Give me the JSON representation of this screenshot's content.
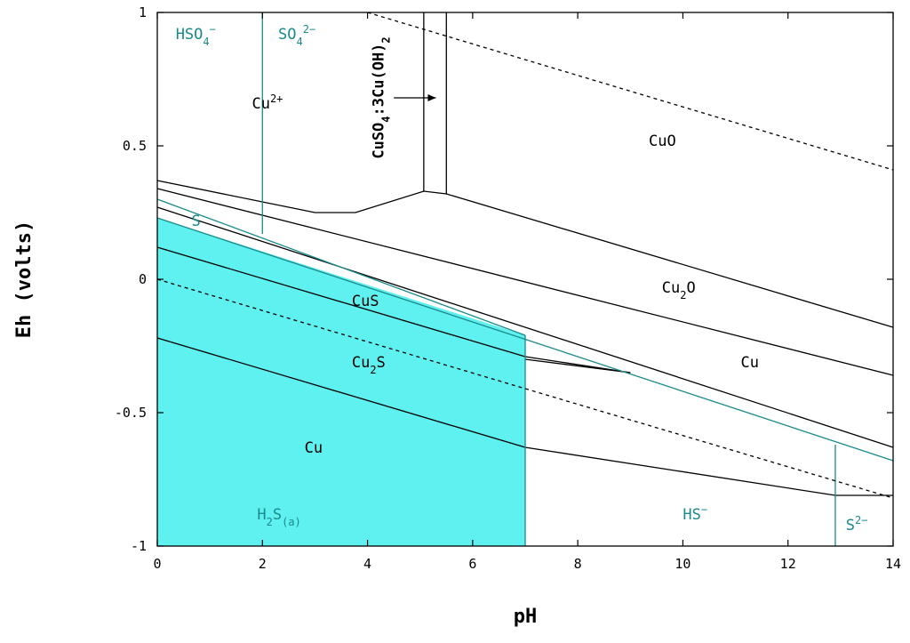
{
  "chart_data": {
    "type": "line",
    "title": "",
    "xlabel": "pH",
    "ylabel": "Eh (volts)",
    "xlim": [
      0,
      14
    ],
    "ylim": [
      -1,
      1
    ],
    "x_ticks": [
      0,
      2,
      4,
      6,
      8,
      10,
      12,
      14
    ],
    "x_tick_labels": [
      "0",
      "2",
      "4",
      "6",
      "8",
      "10",
      "12",
      "14"
    ],
    "y_ticks": [
      -1,
      -0.5,
      0,
      0.5,
      1
    ],
    "y_tick_labels": [
      "-1",
      "-0.5",
      "0",
      "0.5",
      "1"
    ],
    "grid": false,
    "colors": {
      "solid_boundary": "#000000",
      "sulfur_boundary": "#1a8a8a",
      "shaded_region": "#5ff0f0",
      "water_limits": "#000000"
    },
    "shaded_region": {
      "name": "H2S(a) field",
      "points": [
        [
          0,
          0.23
        ],
        [
          7,
          -0.21
        ],
        [
          7,
          -1
        ],
        [
          0,
          -1
        ]
      ]
    },
    "boundaries": [
      {
        "id": "a",
        "style": "solid",
        "color": "black",
        "x": [
          0,
          3,
          3.77,
          5.07,
          5.5,
          14
        ],
        "y": [
          0.37,
          0.25,
          0.25,
          0.33,
          0.32,
          -0.18
        ]
      },
      {
        "id": "b",
        "style": "solid",
        "color": "black",
        "x": [
          0,
          14
        ],
        "y": [
          0.34,
          -0.36
        ]
      },
      {
        "id": "c",
        "style": "solid",
        "color": "black",
        "x": [
          0,
          14
        ],
        "y": [
          0.27,
          -0.63
        ]
      },
      {
        "id": "d",
        "style": "solid",
        "color": "black",
        "x": [
          0,
          7,
          9
        ],
        "y": [
          0.12,
          -0.29,
          -0.35
        ]
      },
      {
        "id": "e",
        "style": "solid",
        "color": "black",
        "x": [
          0,
          7,
          12.9,
          14
        ],
        "y": [
          -0.22,
          -0.63,
          -0.81,
          -0.81
        ]
      },
      {
        "id": "f",
        "style": "solid",
        "color": "black",
        "x": [
          7,
          9
        ],
        "y": [
          -0.3,
          -0.35
        ]
      },
      {
        "id": "g",
        "style": "solid",
        "color": "black",
        "x": [
          5.07,
          5.07
        ],
        "y": [
          0.33,
          1
        ]
      },
      {
        "id": "h",
        "style": "solid",
        "color": "black",
        "x": [
          5.5,
          5.5
        ],
        "y": [
          0.32,
          1
        ]
      },
      {
        "id": "s1",
        "style": "solid",
        "color": "teal",
        "x": [
          0,
          7
        ],
        "y": [
          0.3,
          -0.21
        ]
      },
      {
        "id": "s2",
        "style": "solid",
        "color": "teal",
        "x": [
          0,
          14
        ],
        "y": [
          0.23,
          -0.68
        ]
      },
      {
        "id": "s3",
        "style": "solid",
        "color": "teal",
        "x": [
          2,
          2
        ],
        "y": [
          0.17,
          1
        ]
      },
      {
        "id": "s4",
        "style": "solid",
        "color": "teal",
        "x": [
          7,
          7
        ],
        "y": [
          -1,
          -0.21
        ]
      },
      {
        "id": "s5",
        "style": "solid",
        "color": "teal",
        "x": [
          12.9,
          12.9
        ],
        "y": [
          -1,
          -0.62
        ]
      },
      {
        "id": "w1",
        "style": "dashed",
        "color": "black",
        "x": [
          4,
          14
        ],
        "y": [
          1,
          0.41
        ]
      },
      {
        "id": "w2",
        "style": "dashed",
        "color": "black",
        "x": [
          0,
          14
        ],
        "y": [
          0,
          -0.82
        ]
      }
    ],
    "annotations": [
      {
        "id": "hso4",
        "text": "HSO",
        "sub": "4",
        "sup": "−",
        "x": 0.35,
        "y": 0.9,
        "color": "teal"
      },
      {
        "id": "so4",
        "text": "SO",
        "sub": "4",
        "sup": "2−",
        "x": 2.3,
        "y": 0.9,
        "color": "teal"
      },
      {
        "id": "cu2plus",
        "text": "Cu",
        "sub": "",
        "sup": "2+",
        "x": 1.8,
        "y": 0.64,
        "color": "black"
      },
      {
        "id": "cuso4",
        "text": "CuSO",
        "sub": "4",
        "mid": ":3Cu(OH)",
        "sub2": "2",
        "x": 4.3,
        "y": 0.68,
        "color": "black",
        "rotated": true
      },
      {
        "id": "cuo",
        "text": "CuO",
        "sub": "",
        "sup": "",
        "x": 9.35,
        "y": 0.5,
        "color": "black"
      },
      {
        "id": "cu2o",
        "text": "Cu",
        "sub": "2",
        "tail": "O",
        "x": 9.6,
        "y": -0.05,
        "color": "black"
      },
      {
        "id": "cu_right",
        "text": "Cu",
        "sub": "",
        "sup": "",
        "x": 11.1,
        "y": -0.33,
        "color": "black"
      },
      {
        "id": "s_label",
        "text": "S",
        "sub": "",
        "sup": "",
        "x": 0.65,
        "y": 0.2,
        "color": "teal"
      },
      {
        "id": "cus",
        "text": "CuS",
        "sub": "",
        "sup": "",
        "x": 3.7,
        "y": -0.1,
        "color": "black"
      },
      {
        "id": "cu2s",
        "text": "Cu",
        "sub": "2",
        "tail": "S",
        "x": 3.7,
        "y": -0.33,
        "color": "black"
      },
      {
        "id": "cu_left",
        "text": "Cu",
        "sub": "",
        "sup": "",
        "x": 2.8,
        "y": -0.65,
        "color": "black"
      },
      {
        "id": "h2s",
        "text": "H",
        "sub": "2",
        "tail": "S",
        "sub2": "(a)",
        "x": 1.9,
        "y": -0.9,
        "color": "teal"
      },
      {
        "id": "hs",
        "text": "HS",
        "sub": "",
        "sup": "−",
        "x": 10,
        "y": -0.9,
        "color": "teal"
      },
      {
        "id": "s2minus",
        "text": "S",
        "sub": "",
        "sup": "2−",
        "x": 13.1,
        "y": -0.94,
        "color": "teal"
      }
    ],
    "arrow": {
      "from": [
        4.5,
        0.68
      ],
      "to": [
        5.3,
        0.68
      ]
    }
  }
}
